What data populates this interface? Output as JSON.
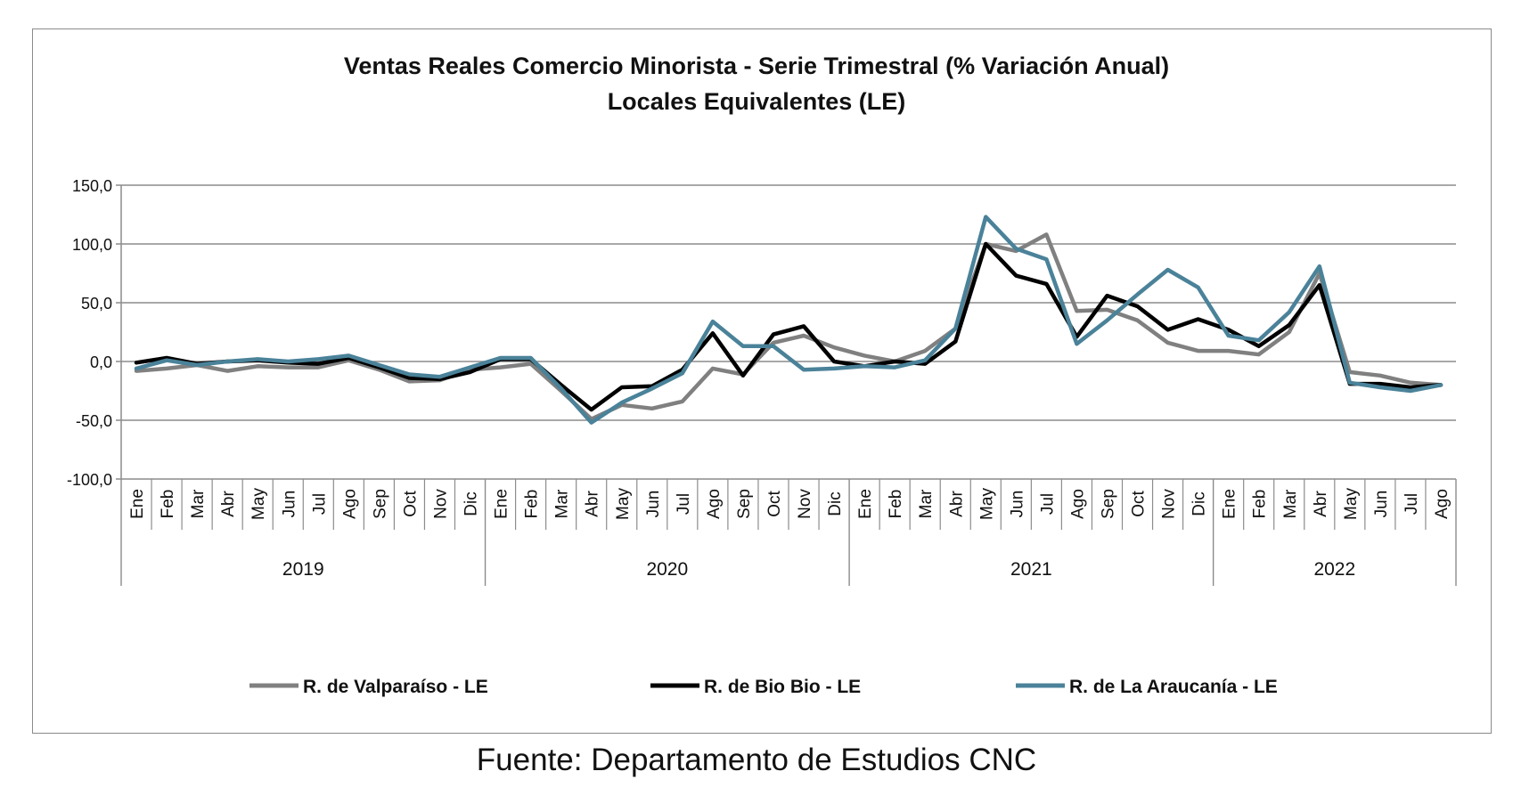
{
  "chart_data": {
    "type": "line",
    "title": "Ventas Reales Comercio Minorista - Serie Trimestral (% Variación Anual)",
    "subtitle": "Locales Equivalentes (LE)",
    "ylim": [
      -100,
      150
    ],
    "yticks": [
      -100,
      -50,
      0,
      50,
      100,
      150
    ],
    "ytick_labels": [
      "-100,0",
      "-50,0",
      "0,0",
      "50,0",
      "100,0",
      "150,0"
    ],
    "grid": true,
    "legend_position": "bottom",
    "years": [
      {
        "label": "2019",
        "months": [
          "Ene",
          "Feb",
          "Mar",
          "Abr",
          "May",
          "Jun",
          "Jul",
          "Ago",
          "Sep",
          "Oct",
          "Nov",
          "Dic"
        ]
      },
      {
        "label": "2020",
        "months": [
          "Ene",
          "Feb",
          "Mar",
          "Abr",
          "May",
          "Jun",
          "Jul",
          "Ago",
          "Sep",
          "Oct",
          "Nov",
          "Dic"
        ]
      },
      {
        "label": "2021",
        "months": [
          "Ene",
          "Feb",
          "Mar",
          "Abr",
          "May",
          "Jun",
          "Jul",
          "Ago",
          "Sep",
          "Oct",
          "Nov",
          "Dic"
        ]
      },
      {
        "label": "2022",
        "months": [
          "Ene",
          "Feb",
          "Mar",
          "Abr",
          "May",
          "Jun",
          "Jul",
          "Ago"
        ]
      }
    ],
    "series": [
      {
        "name": "R. de Valparaíso - LE",
        "color": "#808080",
        "values": [
          -8,
          -6,
          -3,
          -8,
          -4,
          -5,
          -5,
          1,
          -7,
          -17,
          -16,
          -7,
          -5,
          -2,
          -25,
          -49,
          -37,
          -40,
          -34,
          -6,
          -11,
          16,
          22,
          12,
          5,
          0,
          9,
          28,
          100,
          94,
          108,
          43,
          44,
          35,
          16,
          9,
          9,
          6,
          25,
          75,
          -9,
          -12,
          -18,
          -20
        ]
      },
      {
        "name": "R. de Bio Bio - LE",
        "color": "#000000",
        "values": [
          -1,
          3,
          -2,
          0,
          1,
          -1,
          -2,
          3,
          -5,
          -14,
          -15,
          -9,
          2,
          2,
          -20,
          -41,
          -22,
          -21,
          -7,
          24,
          -12,
          23,
          30,
          0,
          -4,
          0,
          -2,
          17,
          100,
          73,
          66,
          21,
          56,
          47,
          27,
          36,
          27,
          13,
          31,
          65,
          -19,
          -19,
          -22,
          -20
        ]
      },
      {
        "name": "R. de La Araucanía - LE",
        "color": "#4a8299",
        "values": [
          -6,
          1,
          -3,
          0,
          2,
          0,
          2,
          5,
          -3,
          -11,
          -13,
          -5,
          3,
          3,
          -23,
          -52,
          -35,
          -23,
          -10,
          34,
          13,
          13,
          -7,
          -6,
          -4,
          -5,
          1,
          28,
          123,
          96,
          87,
          15,
          35,
          57,
          78,
          63,
          22,
          18,
          42,
          81,
          -18,
          -22,
          -25,
          -20
        ]
      }
    ]
  },
  "footer": {
    "source": "Fuente: Departamento de Estudios CNC"
  }
}
